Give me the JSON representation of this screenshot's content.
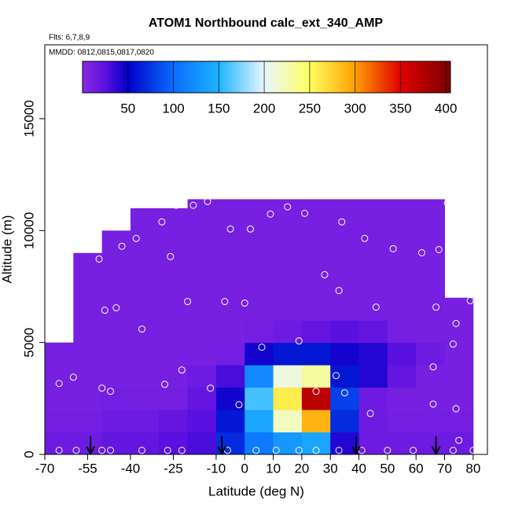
{
  "chart_data": {
    "type": "heatmap",
    "title": "ATOM1 Northbound calc_ext_340_AMP",
    "subtitle": "Flts: 6,7,8,9",
    "annotation": "MMDD: 0812,0815,0817,0820",
    "xlabel": "Latitude (deg N)",
    "ylabel": "Altitude (m)",
    "xlim": [
      -70,
      85
    ],
    "ylim": [
      0,
      18300
    ],
    "xticks": [
      -70,
      -55,
      -40,
      -25,
      -10,
      0,
      10,
      20,
      30,
      40,
      50,
      60,
      70,
      80
    ],
    "yticks": [
      0,
      5000,
      10000,
      15000
    ],
    "clim": [
      0,
      405
    ],
    "cticks": [
      50,
      100,
      150,
      200,
      250,
      300,
      350,
      400
    ],
    "colorscale": [
      [
        0,
        "#8a2be2"
      ],
      [
        25,
        "#5a10e0"
      ],
      [
        50,
        "#0000c8"
      ],
      [
        100,
        "#0a6cff"
      ],
      [
        150,
        "#1eb4ff"
      ],
      [
        200,
        "#e8f6ff"
      ],
      [
        250,
        "#ffff60"
      ],
      [
        300,
        "#ffa000"
      ],
      [
        350,
        "#e00000"
      ],
      [
        405,
        "#7a0000"
      ]
    ],
    "x_edges": [
      -70,
      -60,
      -50,
      -40,
      -30,
      -20,
      -10,
      0,
      10,
      20,
      30,
      40,
      50,
      60,
      70,
      80
    ],
    "y_edges": [
      0,
      1000,
      2000,
      3000,
      4000,
      5000,
      6000,
      7000,
      8000,
      9000,
      10000,
      11000,
      11400
    ],
    "z": [
      [
        15,
        15,
        20,
        20,
        25,
        30,
        70,
        110,
        130,
        140,
        40,
        15,
        15,
        15,
        15
      ],
      [
        12,
        12,
        15,
        15,
        20,
        25,
        60,
        140,
        220,
        290,
        70,
        15,
        12,
        12,
        12
      ],
      [
        10,
        10,
        12,
        12,
        12,
        20,
        45,
        160,
        260,
        370,
        80,
        15,
        10,
        10,
        10
      ],
      [
        10,
        10,
        10,
        10,
        10,
        15,
        30,
        120,
        210,
        230,
        60,
        40,
        20,
        10,
        10
      ],
      [
        10,
        10,
        10,
        10,
        10,
        10,
        12,
        45,
        60,
        60,
        45,
        40,
        25,
        15,
        10
      ],
      [
        null,
        10,
        10,
        10,
        10,
        10,
        10,
        12,
        15,
        20,
        25,
        20,
        12,
        10,
        10
      ],
      [
        null,
        10,
        10,
        10,
        10,
        10,
        10,
        10,
        10,
        10,
        10,
        10,
        10,
        10,
        10
      ],
      [
        null,
        10,
        10,
        10,
        10,
        10,
        10,
        10,
        10,
        10,
        10,
        10,
        10,
        10,
        null
      ],
      [
        null,
        10,
        10,
        10,
        10,
        10,
        10,
        10,
        10,
        10,
        10,
        10,
        10,
        10,
        null
      ],
      [
        null,
        null,
        10,
        10,
        10,
        10,
        10,
        10,
        10,
        10,
        10,
        10,
        10,
        10,
        null
      ],
      [
        null,
        null,
        null,
        10,
        10,
        10,
        10,
        10,
        10,
        10,
        10,
        10,
        10,
        10,
        null
      ],
      [
        null,
        null,
        null,
        null,
        null,
        10,
        10,
        10,
        10,
        10,
        10,
        10,
        10,
        10,
        null
      ]
    ],
    "points": {
      "x": [
        -24,
        -18,
        -13,
        -29,
        -38,
        -43,
        -26,
        -51,
        -5,
        2,
        9,
        15,
        21,
        34,
        42,
        52,
        62,
        68,
        71,
        73,
        72,
        28,
        33,
        -20,
        -7,
        0,
        -45,
        -49,
        46,
        67,
        79,
        74,
        -36,
        73,
        19,
        6,
        32,
        -22,
        66,
        -60,
        -65,
        -28,
        -50,
        -47,
        -12,
        25,
        35,
        -2,
        44,
        66,
        74,
        75,
        -65,
        -59,
        -50,
        -47,
        -36,
        -27,
        -22,
        -6,
        4,
        11,
        19,
        25,
        33,
        41,
        50,
        59,
        73,
        80
      ],
      "y": [
        11130,
        11130,
        11300,
        10390,
        9650,
        9300,
        8840,
        8730,
        10070,
        10070,
        10740,
        11060,
        10770,
        10390,
        9650,
        9190,
        9010,
        9150,
        11230,
        9960,
        8590,
        8030,
        7320,
        6830,
        6830,
        6760,
        6550,
        6440,
        6580,
        6580,
        6870,
        5850,
        5600,
        4930,
        5070,
        4790,
        3520,
        3770,
        3910,
        3450,
        3170,
        3130,
        2960,
        2820,
        2960,
        2820,
        2750,
        2220,
        1830,
        2250,
        2040,
        630,
        180,
        180,
        180,
        180,
        180,
        180,
        180,
        180,
        180,
        180,
        180,
        180,
        180,
        180,
        180,
        180,
        180,
        180
      ]
    },
    "arrows": [
      -54,
      -8,
      39,
      67
    ]
  }
}
